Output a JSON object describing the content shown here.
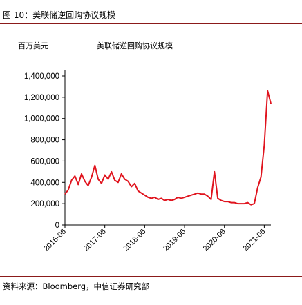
{
  "figure": {
    "title": "图 10：美联储逆回购协议规模",
    "unit_label": "百万美元",
    "source": "资料来源：Bloomberg，中信证券研究部"
  },
  "chart_data": {
    "type": "line",
    "title": "美联储逆回购协议规模",
    "ylabel": "百万美元",
    "xlabel": "",
    "ylim": [
      0,
      1400000
    ],
    "y_ticks": [
      0,
      200000,
      400000,
      600000,
      800000,
      1000000,
      1200000,
      1400000
    ],
    "y_tick_labels": [
      "0",
      "200,000",
      "400,000",
      "600,000",
      "800,000",
      "1,000,000",
      "1,200,000",
      "1,400,000"
    ],
    "x_range": [
      "2016-06",
      "2021-08"
    ],
    "x_ticks": [
      "2016-06",
      "2017-06",
      "2018-06",
      "2019-06",
      "2020-06",
      "2021-06"
    ],
    "line_color": "#e0141e",
    "grid": false,
    "legend": "none",
    "series": [
      {
        "x": [
          "2016-06",
          "2016-07",
          "2016-08",
          "2016-09",
          "2016-10",
          "2016-11",
          "2016-12",
          "2017-01",
          "2017-02",
          "2017-03",
          "2017-04",
          "2017-05",
          "2017-06",
          "2017-07",
          "2017-08",
          "2017-09",
          "2017-10",
          "2017-11",
          "2017-12",
          "2018-01",
          "2018-02",
          "2018-03",
          "2018-04",
          "2018-05",
          "2018-06",
          "2018-07",
          "2018-08",
          "2018-09",
          "2018-10",
          "2018-11",
          "2018-12",
          "2019-01",
          "2019-02",
          "2019-03",
          "2019-04",
          "2019-05",
          "2019-06",
          "2019-07",
          "2019-08",
          "2019-09",
          "2019-10",
          "2019-11",
          "2019-12",
          "2020-01",
          "2020-02",
          "2020-03",
          "2020-04",
          "2020-05",
          "2020-06",
          "2020-07",
          "2020-08",
          "2020-09",
          "2020-10",
          "2020-11",
          "2020-12",
          "2021-01",
          "2021-02",
          "2021-03",
          "2021-04",
          "2021-05",
          "2021-06",
          "2021-07",
          "2021-08"
        ],
        "values": [
          290000,
          330000,
          420000,
          460000,
          380000,
          480000,
          410000,
          370000,
          450000,
          560000,
          430000,
          390000,
          470000,
          430000,
          500000,
          420000,
          400000,
          480000,
          430000,
          410000,
          360000,
          390000,
          320000,
          300000,
          280000,
          260000,
          250000,
          260000,
          240000,
          250000,
          230000,
          240000,
          230000,
          240000,
          260000,
          250000,
          260000,
          270000,
          280000,
          290000,
          300000,
          290000,
          290000,
          270000,
          240000,
          500000,
          250000,
          230000,
          220000,
          220000,
          210000,
          210000,
          200000,
          200000,
          200000,
          210000,
          190000,
          200000,
          350000,
          450000,
          750000,
          1260000,
          1140000
        ]
      }
    ]
  }
}
